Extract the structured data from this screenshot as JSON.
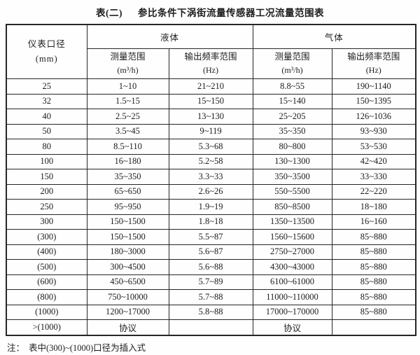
{
  "page": {
    "title_prefix": "表(二)",
    "title_text": "参比条件下涡街流量传感器工况流量范围表",
    "note_prefix": "注：",
    "note_text": "表中(300)~(1000)口径为插入式"
  },
  "table": {
    "diameter_header": {
      "line1": "仪表口径",
      "line2": "(mm)"
    },
    "groups": [
      {
        "label": "液体"
      },
      {
        "label": "气体"
      }
    ],
    "sub_headers": [
      {
        "line1": "测量范围",
        "line2": "(m³/h)"
      },
      {
        "line1": "输出频率范围",
        "line2": "(Hz)"
      },
      {
        "line1": "测量范围",
        "line2": "(m³/h)"
      },
      {
        "line1": "输出频率范围",
        "line2": "(Hz)"
      }
    ],
    "rows": [
      [
        "25",
        "1~10",
        "21~210",
        "8.8~55",
        "190~1140"
      ],
      [
        "32",
        "1.5~15",
        "15~150",
        "15~140",
        "150~1395"
      ],
      [
        "40",
        "2.5~25",
        "13~130",
        "25~205",
        "126~1036"
      ],
      [
        "50",
        "3.5~45",
        "9~119",
        "35~350",
        "93~930"
      ],
      [
        "80",
        "8.5~110",
        "5.3~68",
        "80~800",
        "53~530"
      ],
      [
        "100",
        "16~180",
        "5.2~58",
        "130~1300",
        "42~420"
      ],
      [
        "150",
        "35~350",
        "3.3~33",
        "350~3500",
        "33~330"
      ],
      [
        "200",
        "65~650",
        "2.6~26",
        "550~5500",
        "22~220"
      ],
      [
        "250",
        "95~950",
        "1.9~19",
        "850~8500",
        "18~180"
      ],
      [
        "300",
        "150~1500",
        "1.8~18",
        "1350~13500",
        "16~160"
      ],
      [
        "(300)",
        "150~1500",
        "5.5~87",
        "1560~15600",
        "85~880"
      ],
      [
        "(400)",
        "180~3000",
        "5.6~87",
        "2750~27000",
        "85~880"
      ],
      [
        "(500)",
        "300~4500",
        "5.6~88",
        "4300~43000",
        "85~880"
      ],
      [
        "(600)",
        "450~6500",
        "5.7~89",
        "6100~61000",
        "85~880"
      ],
      [
        "(800)",
        "750~10000",
        "5.7~88",
        "11000~110000",
        "85~880"
      ],
      [
        "(1000)",
        "1200~17000",
        "5.8~88",
        "17000~170000",
        "85~880"
      ],
      [
        ">(1000)",
        "协议",
        "",
        "协议",
        ""
      ]
    ]
  }
}
